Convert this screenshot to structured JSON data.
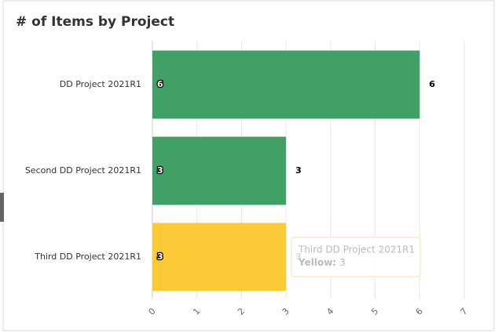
{
  "chart_data": {
    "type": "bar",
    "orientation": "horizontal",
    "title": "# of Items by Project",
    "categories": [
      "DD Project 2021R1",
      "Second DD Project 2021R1",
      "Third DD Project 2021R1"
    ],
    "values": [
      6,
      3,
      3
    ],
    "colors": [
      "#41a066",
      "#41a066",
      "#fdca36"
    ],
    "xlim": [
      0,
      7
    ],
    "xticks": [
      0,
      1,
      2,
      3,
      4,
      5,
      6,
      7
    ],
    "grid": true,
    "tooltip": {
      "title": "Third DD Project 2021R1",
      "label": "Yellow:",
      "value": 3
    }
  }
}
